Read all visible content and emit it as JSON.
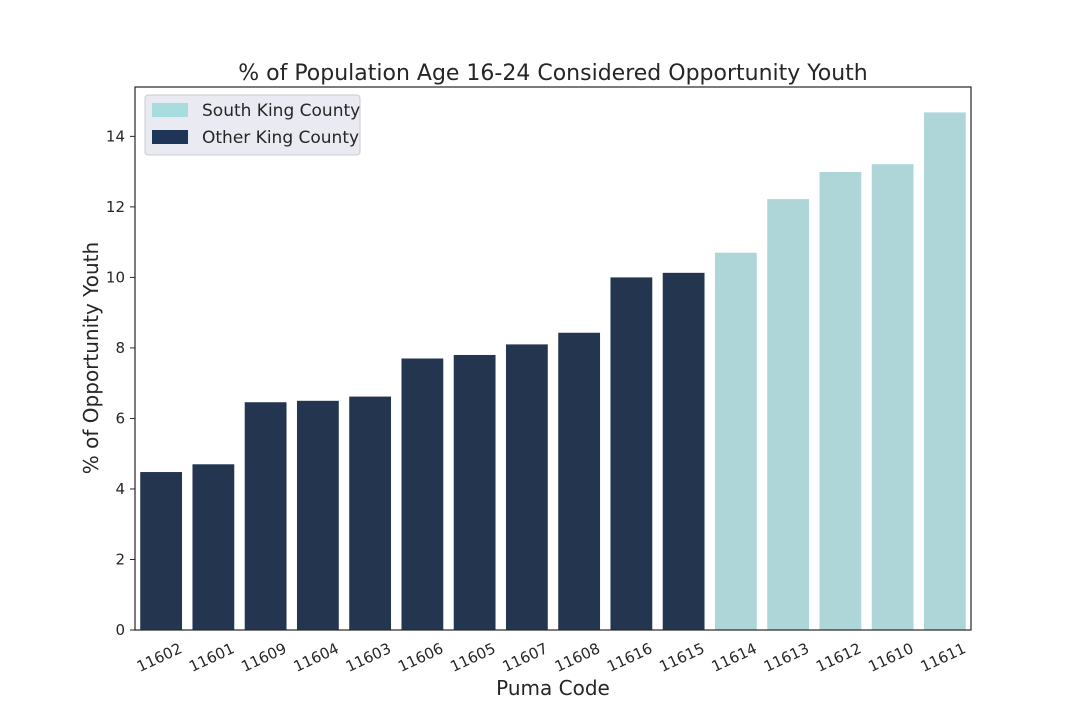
{
  "chart_data": {
    "type": "bar",
    "title": "% of Population Age 16-24 Considered Opportunity Youth",
    "xlabel": "Puma Code",
    "ylabel": "% of Opportunity Youth",
    "ylim": [
      0,
      15.4
    ],
    "yticks": [
      0,
      2,
      4,
      6,
      8,
      10,
      12,
      14
    ],
    "grid": false,
    "legend_position": "top-left",
    "categories": [
      "11602",
      "11601",
      "11609",
      "11604",
      "11603",
      "11606",
      "11605",
      "11607",
      "11608",
      "11616",
      "11615",
      "11614",
      "11613",
      "11612",
      "11610",
      "11611"
    ],
    "values": [
      4.48,
      4.7,
      6.46,
      6.5,
      6.62,
      7.7,
      7.8,
      8.1,
      8.43,
      10.0,
      10.13,
      10.7,
      12.22,
      12.99,
      13.21,
      14.68
    ],
    "groups": [
      "other",
      "other",
      "other",
      "other",
      "other",
      "other",
      "other",
      "other",
      "other",
      "other",
      "other",
      "south",
      "south",
      "south",
      "south",
      "south"
    ],
    "series": [
      {
        "key": "south",
        "name": "South King County",
        "color": "#aed6d8",
        "legend_color": "#a8dde0"
      },
      {
        "key": "other",
        "name": "Other King County",
        "color": "#243550",
        "legend_color": "#1f3558"
      }
    ]
  }
}
